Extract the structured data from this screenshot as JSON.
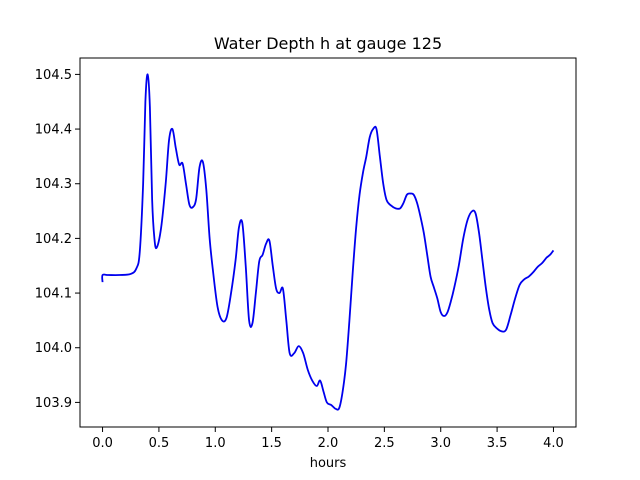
{
  "chart_data": {
    "type": "line",
    "title": "Water Depth h at gauge 125",
    "xlabel": "hours",
    "ylabel": "",
    "xlim": [
      -0.2,
      4.2
    ],
    "ylim": [
      103.855,
      104.53
    ],
    "xticks": [
      0.0,
      0.5,
      1.0,
      1.5,
      2.0,
      2.5,
      3.0,
      3.5,
      4.0
    ],
    "xtick_labels": [
      "0.0",
      "0.5",
      "1.0",
      "1.5",
      "2.0",
      "2.5",
      "3.0",
      "3.5",
      "4.0"
    ],
    "yticks": [
      103.9,
      104.0,
      104.1,
      104.2,
      104.3,
      104.4,
      104.5
    ],
    "ytick_labels": [
      "103.9",
      "104.0",
      "104.1",
      "104.2",
      "104.3",
      "104.4",
      "104.5"
    ],
    "grid": false,
    "series": [
      {
        "color": "#0000ee",
        "x": [
          0.0,
          0.0,
          0.05,
          0.15,
          0.25,
          0.3,
          0.33,
          0.36,
          0.38,
          0.4,
          0.42,
          0.44,
          0.46,
          0.48,
          0.52,
          0.56,
          0.59,
          0.62,
          0.65,
          0.68,
          0.71,
          0.74,
          0.77,
          0.8,
          0.83,
          0.86,
          0.89,
          0.92,
          0.95,
          0.98,
          1.02,
          1.06,
          1.1,
          1.14,
          1.18,
          1.21,
          1.24,
          1.27,
          1.3,
          1.33,
          1.36,
          1.39,
          1.42,
          1.45,
          1.48,
          1.51,
          1.54,
          1.57,
          1.6,
          1.63,
          1.66,
          1.7,
          1.74,
          1.78,
          1.82,
          1.86,
          1.9,
          1.93,
          1.96,
          1.99,
          2.03,
          2.07,
          2.1,
          2.13,
          2.16,
          2.19,
          2.22,
          2.25,
          2.28,
          2.31,
          2.34,
          2.37,
          2.4,
          2.43,
          2.46,
          2.49,
          2.52,
          2.56,
          2.6,
          2.64,
          2.67,
          2.7,
          2.73,
          2.76,
          2.79,
          2.82,
          2.85,
          2.88,
          2.91,
          2.94,
          2.97,
          3.0,
          3.03,
          3.06,
          3.09,
          3.12,
          3.16,
          3.2,
          3.24,
          3.28,
          3.31,
          3.34,
          3.37,
          3.4,
          3.43,
          3.46,
          3.5,
          3.54,
          3.58,
          3.62,
          3.66,
          3.7,
          3.74,
          3.78,
          3.82,
          3.86,
          3.9,
          3.94,
          3.97,
          4.0
        ],
        "y": [
          104.12,
          104.133,
          104.133,
          104.133,
          104.135,
          104.145,
          104.175,
          104.3,
          104.45,
          104.5,
          104.44,
          104.27,
          104.2,
          104.183,
          104.22,
          104.3,
          104.38,
          104.4,
          104.365,
          104.335,
          104.337,
          104.3,
          104.262,
          104.257,
          104.272,
          104.33,
          104.34,
          104.29,
          104.2,
          104.14,
          104.075,
          104.05,
          104.055,
          104.1,
          104.16,
          104.22,
          104.228,
          104.15,
          104.05,
          104.045,
          104.1,
          104.158,
          104.17,
          104.19,
          104.196,
          104.15,
          104.108,
          104.1,
          104.108,
          104.05,
          103.99,
          103.99,
          104.003,
          103.99,
          103.96,
          103.94,
          103.93,
          103.94,
          103.92,
          103.9,
          103.895,
          103.888,
          103.89,
          103.92,
          103.97,
          104.05,
          104.14,
          104.22,
          104.28,
          104.32,
          104.35,
          104.385,
          104.4,
          104.4,
          104.35,
          104.3,
          104.27,
          104.26,
          104.255,
          104.255,
          104.265,
          104.28,
          104.282,
          104.28,
          104.265,
          104.24,
          104.21,
          104.17,
          104.13,
          104.11,
          104.09,
          104.065,
          104.058,
          104.065,
          104.085,
          104.11,
          104.15,
          104.2,
          104.235,
          104.25,
          104.245,
          104.21,
          104.16,
          104.11,
          104.07,
          104.045,
          104.035,
          104.03,
          104.033,
          104.06,
          104.09,
          104.115,
          104.125,
          104.13,
          104.138,
          104.148,
          104.155,
          104.165,
          104.17,
          104.178
        ]
      }
    ]
  }
}
